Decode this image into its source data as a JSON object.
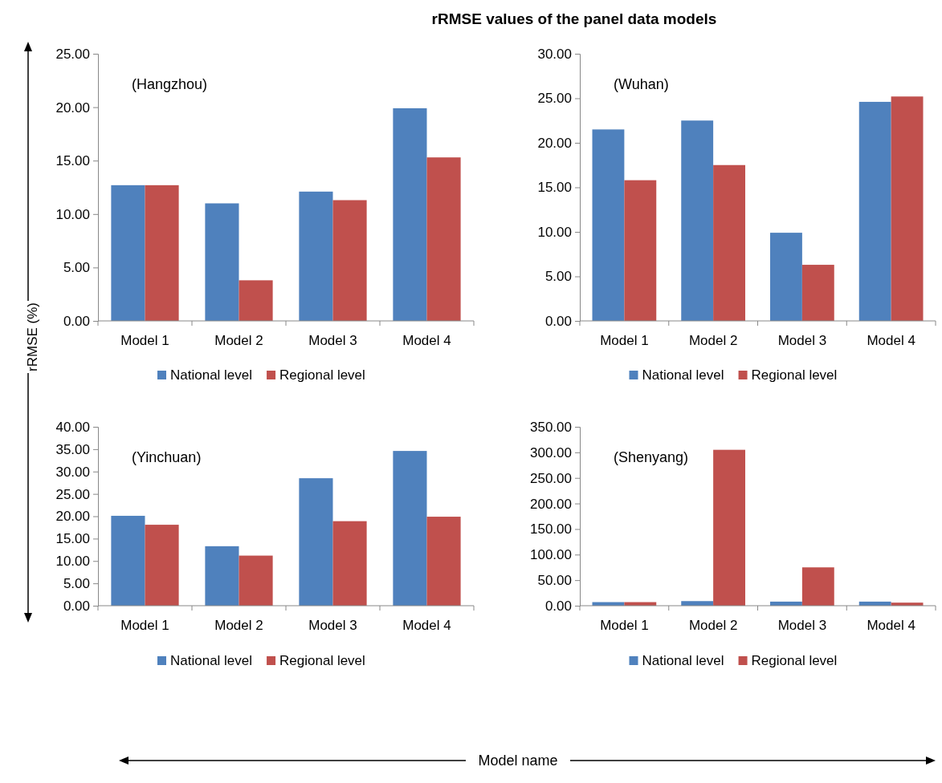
{
  "chart_data": [
    {
      "type": "bar",
      "title": "rRMSE values of the panel data models",
      "subtitle": "(Hangzhou)",
      "ylabel": "rRMSE (%)",
      "categories": [
        "Model 1",
        "Model 2",
        "Model 3",
        "Model 4"
      ],
      "series": [
        {
          "name": "National level",
          "color": "#4f81bd",
          "values": [
            12.7,
            11.0,
            12.1,
            19.9
          ]
        },
        {
          "name": "Regional level",
          "color": "#c0504d",
          "values": [
            12.7,
            3.8,
            11.3,
            15.3
          ]
        }
      ],
      "ylim": [
        0,
        25
      ],
      "yticks": [
        {
          "value": 0,
          "label": "0.00"
        },
        {
          "value": 5,
          "label": "5.00"
        },
        {
          "value": 10,
          "label": "10.00"
        },
        {
          "value": 15,
          "label": "15.00"
        },
        {
          "value": 20,
          "label": "20.00"
        },
        {
          "value": 25,
          "label": "25.00"
        }
      ],
      "legend": "bottom"
    },
    {
      "type": "bar",
      "subtitle": "(Wuhan)",
      "categories": [
        "Model 1",
        "Model 2",
        "Model 3",
        "Model 4"
      ],
      "series": [
        {
          "name": "National level",
          "color": "#4f81bd",
          "values": [
            21.5,
            22.5,
            9.9,
            24.6
          ]
        },
        {
          "name": "Regional level",
          "color": "#c0504d",
          "values": [
            15.8,
            17.5,
            6.3,
            25.2
          ]
        }
      ],
      "ylim": [
        0,
        30
      ],
      "yticks": [
        {
          "value": 0,
          "label": "0.00"
        },
        {
          "value": 5,
          "label": "5.00"
        },
        {
          "value": 10,
          "label": "10.00"
        },
        {
          "value": 15,
          "label": "15.00"
        },
        {
          "value": 20,
          "label": "20.00"
        },
        {
          "value": 25,
          "label": "25.00"
        },
        {
          "value": 30,
          "label": "30.00"
        }
      ],
      "legend": "bottom"
    },
    {
      "type": "bar",
      "subtitle": "(Yinchuan)",
      "xlabel": "Model name",
      "categories": [
        "Model 1",
        "Model 2",
        "Model 3",
        "Model 4"
      ],
      "series": [
        {
          "name": "National level",
          "color": "#4f81bd",
          "values": [
            20.1,
            13.3,
            28.5,
            34.6
          ]
        },
        {
          "name": "Regional level",
          "color": "#c0504d",
          "values": [
            18.1,
            11.2,
            18.9,
            19.9
          ]
        }
      ],
      "ylim": [
        0,
        40
      ],
      "yticks": [
        {
          "value": 0,
          "label": "0.00"
        },
        {
          "value": 5,
          "label": "5.00"
        },
        {
          "value": 10,
          "label": "10.00"
        },
        {
          "value": 15,
          "label": "15.00"
        },
        {
          "value": 20,
          "label": "20.00"
        },
        {
          "value": 25,
          "label": "25.00"
        },
        {
          "value": 30,
          "label": "30.00"
        },
        {
          "value": 35,
          "label": "35.00"
        },
        {
          "value": 40,
          "label": "40.00"
        }
      ],
      "legend": "bottom"
    },
    {
      "type": "bar",
      "subtitle": "(Shenyang)",
      "categories": [
        "Model 1",
        "Model 2",
        "Model 3",
        "Model 4"
      ],
      "series": [
        {
          "name": "National level",
          "color": "#4f81bd",
          "values": [
            7,
            9,
            8,
            8
          ]
        },
        {
          "name": "Regional level",
          "color": "#c0504d",
          "values": [
            7,
            305,
            75,
            6
          ]
        }
      ],
      "ylim": [
        0,
        350
      ],
      "yticks": [
        {
          "value": 0,
          "label": "0.00"
        },
        {
          "value": 50,
          "label": "50.00"
        },
        {
          "value": 100,
          "label": "100.00"
        },
        {
          "value": 150,
          "label": "150.00"
        },
        {
          "value": 200,
          "label": "200.00"
        },
        {
          "value": 250,
          "label": "250.00"
        },
        {
          "value": 300,
          "label": "300.00"
        },
        {
          "value": 350,
          "label": "350.00"
        }
      ],
      "legend": "bottom"
    }
  ]
}
